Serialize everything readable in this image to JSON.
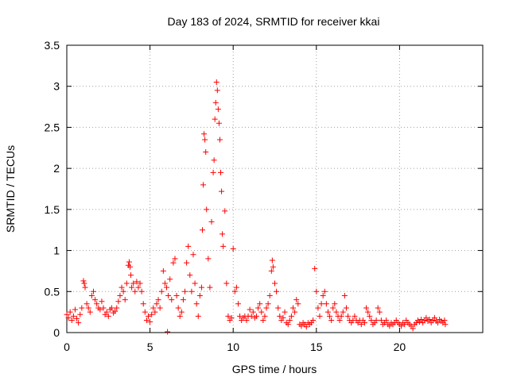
{
  "chart_data": {
    "type": "scatter",
    "title": "Day 183 of 2024, SRMTID for receiver kkai",
    "xlabel": "GPS time / hours",
    "ylabel": "SRMTID / TECUs",
    "xlim": [
      0,
      25
    ],
    "ylim": [
      0,
      3.5
    ],
    "xticks": [
      "0",
      "5",
      "10",
      "15",
      "20"
    ],
    "yticks": [
      "0",
      "0.5",
      "1",
      "1.5",
      "2",
      "2.5",
      "3",
      "3.5"
    ],
    "grid": true,
    "marker": "plus",
    "color": "#ff0000",
    "series": [
      {
        "name": "SRMTID",
        "points": [
          [
            0.0,
            0.22
          ],
          [
            0.1,
            0.18
          ],
          [
            0.2,
            0.25
          ],
          [
            0.3,
            0.15
          ],
          [
            0.4,
            0.2
          ],
          [
            0.5,
            0.28
          ],
          [
            0.6,
            0.17
          ],
          [
            0.7,
            0.12
          ],
          [
            0.8,
            0.22
          ],
          [
            0.9,
            0.3
          ],
          [
            1.0,
            0.63
          ],
          [
            1.05,
            0.6
          ],
          [
            1.1,
            0.55
          ],
          [
            1.2,
            0.35
          ],
          [
            1.3,
            0.3
          ],
          [
            1.4,
            0.25
          ],
          [
            1.5,
            0.45
          ],
          [
            1.6,
            0.5
          ],
          [
            1.7,
            0.4
          ],
          [
            1.8,
            0.35
          ],
          [
            1.9,
            0.3
          ],
          [
            2.0,
            0.28
          ],
          [
            2.1,
            0.38
          ],
          [
            2.2,
            0.3
          ],
          [
            2.3,
            0.22
          ],
          [
            2.4,
            0.25
          ],
          [
            2.5,
            0.2
          ],
          [
            2.6,
            0.28
          ],
          [
            2.7,
            0.3
          ],
          [
            2.8,
            0.24
          ],
          [
            2.9,
            0.26
          ],
          [
            3.0,
            0.3
          ],
          [
            3.1,
            0.38
          ],
          [
            3.2,
            0.45
          ],
          [
            3.3,
            0.55
          ],
          [
            3.4,
            0.5
          ],
          [
            3.5,
            0.4
          ],
          [
            3.6,
            0.6
          ],
          [
            3.7,
            0.82
          ],
          [
            3.75,
            0.86
          ],
          [
            3.8,
            0.8
          ],
          [
            3.85,
            0.7
          ],
          [
            3.9,
            0.55
          ],
          [
            4.0,
            0.6
          ],
          [
            4.1,
            0.5
          ],
          [
            4.2,
            0.62
          ],
          [
            4.3,
            0.55
          ],
          [
            4.4,
            0.6
          ],
          [
            4.5,
            0.5
          ],
          [
            4.6,
            0.35
          ],
          [
            4.7,
            0.25
          ],
          [
            4.8,
            0.15
          ],
          [
            4.9,
            0.2
          ],
          [
            5.0,
            0.13
          ],
          [
            5.1,
            0.22
          ],
          [
            5.2,
            0.3
          ],
          [
            5.3,
            0.25
          ],
          [
            5.4,
            0.35
          ],
          [
            5.5,
            0.4
          ],
          [
            5.6,
            0.3
          ],
          [
            5.7,
            0.5
          ],
          [
            5.8,
            0.75
          ],
          [
            5.9,
            0.6
          ],
          [
            6.0,
            0.55
          ],
          [
            6.05,
            0.01
          ],
          [
            6.1,
            0.45
          ],
          [
            6.2,
            0.65
          ],
          [
            6.3,
            0.4
          ],
          [
            6.4,
            0.85
          ],
          [
            6.5,
            0.9
          ],
          [
            6.6,
            0.45
          ],
          [
            6.7,
            0.3
          ],
          [
            6.8,
            0.2
          ],
          [
            6.9,
            0.25
          ],
          [
            7.0,
            0.4
          ],
          [
            7.1,
            0.5
          ],
          [
            7.2,
            0.85
          ],
          [
            7.3,
            1.05
          ],
          [
            7.4,
            0.7
          ],
          [
            7.5,
            0.5
          ],
          [
            7.6,
            0.95
          ],
          [
            7.7,
            0.6
          ],
          [
            7.8,
            0.35
          ],
          [
            7.9,
            0.2
          ],
          [
            8.0,
            0.45
          ],
          [
            8.1,
            0.55
          ],
          [
            8.15,
            1.25
          ],
          [
            8.2,
            1.8
          ],
          [
            8.25,
            2.42
          ],
          [
            8.3,
            2.35
          ],
          [
            8.35,
            2.2
          ],
          [
            8.4,
            1.5
          ],
          [
            8.5,
            0.9
          ],
          [
            8.6,
            0.55
          ],
          [
            8.7,
            1.35
          ],
          [
            8.8,
            1.95
          ],
          [
            8.85,
            2.1
          ],
          [
            8.9,
            2.6
          ],
          [
            8.95,
            2.8
          ],
          [
            9.0,
            3.05
          ],
          [
            9.05,
            2.95
          ],
          [
            9.1,
            2.72
          ],
          [
            9.15,
            2.55
          ],
          [
            9.2,
            2.35
          ],
          [
            9.25,
            1.95
          ],
          [
            9.3,
            1.72
          ],
          [
            9.35,
            1.2
          ],
          [
            9.4,
            1.05
          ],
          [
            9.5,
            1.48
          ],
          [
            9.6,
            0.6
          ],
          [
            9.7,
            0.2
          ],
          [
            9.8,
            0.15
          ],
          [
            9.9,
            0.18
          ],
          [
            10.0,
            1.02
          ],
          [
            10.1,
            0.5
          ],
          [
            10.2,
            0.55
          ],
          [
            10.3,
            0.35
          ],
          [
            10.4,
            0.2
          ],
          [
            10.5,
            0.15
          ],
          [
            10.6,
            0.18
          ],
          [
            10.7,
            0.2
          ],
          [
            10.8,
            0.15
          ],
          [
            10.9,
            0.2
          ],
          [
            11.0,
            0.28
          ],
          [
            11.1,
            0.2
          ],
          [
            11.2,
            0.25
          ],
          [
            11.3,
            0.18
          ],
          [
            11.4,
            0.2
          ],
          [
            11.5,
            0.3
          ],
          [
            11.6,
            0.35
          ],
          [
            11.7,
            0.25
          ],
          [
            11.8,
            0.15
          ],
          [
            11.9,
            0.2
          ],
          [
            12.0,
            0.3
          ],
          [
            12.1,
            0.35
          ],
          [
            12.2,
            0.45
          ],
          [
            12.3,
            0.75
          ],
          [
            12.35,
            0.88
          ],
          [
            12.4,
            0.8
          ],
          [
            12.5,
            0.6
          ],
          [
            12.6,
            0.5
          ],
          [
            12.7,
            0.3
          ],
          [
            12.8,
            0.2
          ],
          [
            12.9,
            0.15
          ],
          [
            13.0,
            0.18
          ],
          [
            13.1,
            0.25
          ],
          [
            13.2,
            0.12
          ],
          [
            13.3,
            0.1
          ],
          [
            13.4,
            0.15
          ],
          [
            13.5,
            0.2
          ],
          [
            13.6,
            0.3
          ],
          [
            13.7,
            0.25
          ],
          [
            13.8,
            0.4
          ],
          [
            13.9,
            0.35
          ],
          [
            14.0,
            0.1
          ],
          [
            14.1,
            0.08
          ],
          [
            14.2,
            0.12
          ],
          [
            14.3,
            0.1
          ],
          [
            14.4,
            0.07
          ],
          [
            14.5,
            0.12
          ],
          [
            14.6,
            0.1
          ],
          [
            14.7,
            0.12
          ],
          [
            14.8,
            0.15
          ],
          [
            14.9,
            0.78
          ],
          [
            15.0,
            0.5
          ],
          [
            15.1,
            0.3
          ],
          [
            15.2,
            0.2
          ],
          [
            15.3,
            0.35
          ],
          [
            15.4,
            0.45
          ],
          [
            15.5,
            0.5
          ],
          [
            15.6,
            0.35
          ],
          [
            15.7,
            0.25
          ],
          [
            15.8,
            0.2
          ],
          [
            15.9,
            0.15
          ],
          [
            16.0,
            0.3
          ],
          [
            16.1,
            0.35
          ],
          [
            16.2,
            0.25
          ],
          [
            16.3,
            0.2
          ],
          [
            16.4,
            0.15
          ],
          [
            16.5,
            0.2
          ],
          [
            16.6,
            0.25
          ],
          [
            16.7,
            0.45
          ],
          [
            16.8,
            0.3
          ],
          [
            16.9,
            0.2
          ],
          [
            17.0,
            0.15
          ],
          [
            17.1,
            0.12
          ],
          [
            17.2,
            0.15
          ],
          [
            17.3,
            0.2
          ],
          [
            17.4,
            0.15
          ],
          [
            17.5,
            0.12
          ],
          [
            17.6,
            0.15
          ],
          [
            17.7,
            0.1
          ],
          [
            17.8,
            0.15
          ],
          [
            17.9,
            0.12
          ],
          [
            18.0,
            0.3
          ],
          [
            18.1,
            0.25
          ],
          [
            18.2,
            0.2
          ],
          [
            18.3,
            0.15
          ],
          [
            18.4,
            0.1
          ],
          [
            18.5,
            0.12
          ],
          [
            18.6,
            0.15
          ],
          [
            18.7,
            0.3
          ],
          [
            18.8,
            0.25
          ],
          [
            18.9,
            0.15
          ],
          [
            19.0,
            0.1
          ],
          [
            19.1,
            0.12
          ],
          [
            19.2,
            0.15
          ],
          [
            19.3,
            0.1
          ],
          [
            19.4,
            0.08
          ],
          [
            19.5,
            0.12
          ],
          [
            19.6,
            0.1
          ],
          [
            19.7,
            0.12
          ],
          [
            19.8,
            0.15
          ],
          [
            19.9,
            0.12
          ],
          [
            20.0,
            0.1
          ],
          [
            20.1,
            0.08
          ],
          [
            20.2,
            0.12
          ],
          [
            20.3,
            0.1
          ],
          [
            20.4,
            0.15
          ],
          [
            20.5,
            0.12
          ],
          [
            20.6,
            0.1
          ],
          [
            20.7,
            0.08
          ],
          [
            20.8,
            0.05
          ],
          [
            20.9,
            0.1
          ],
          [
            21.0,
            0.12
          ],
          [
            21.1,
            0.15
          ],
          [
            21.2,
            0.13
          ],
          [
            21.3,
            0.16
          ],
          [
            21.4,
            0.12
          ],
          [
            21.5,
            0.15
          ],
          [
            21.6,
            0.18
          ],
          [
            21.7,
            0.14
          ],
          [
            21.8,
            0.16
          ],
          [
            21.9,
            0.12
          ],
          [
            22.0,
            0.15
          ],
          [
            22.1,
            0.18
          ],
          [
            22.2,
            0.14
          ],
          [
            22.3,
            0.12
          ],
          [
            22.4,
            0.16
          ],
          [
            22.5,
            0.14
          ],
          [
            22.6,
            0.12
          ],
          [
            22.7,
            0.15
          ],
          [
            22.75,
            0.1
          ]
        ]
      }
    ]
  }
}
